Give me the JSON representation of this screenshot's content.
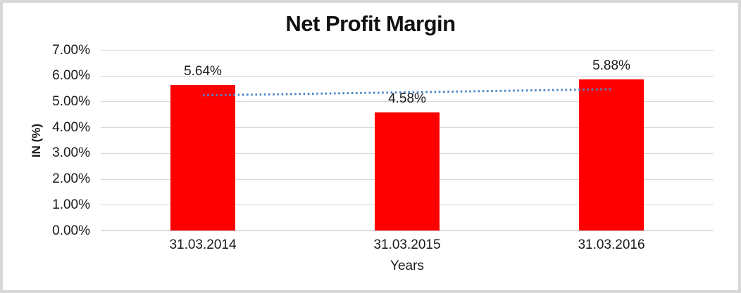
{
  "window": {
    "background_color": "#ffffff",
    "frame_border_color": "#d8d8d8"
  },
  "chart_data": {
    "type": "bar",
    "title": "Net Profit Margin",
    "xlabel": "Years",
    "ylabel": "IN (%)",
    "categories": [
      "31.03.2014",
      "31.03.2015",
      "31.03.2016"
    ],
    "values": [
      5.64,
      4.58,
      5.88
    ],
    "value_labels": [
      "5.64%",
      "4.58%",
      "5.88%"
    ],
    "ylim": [
      0,
      7
    ],
    "ytick_step": 1,
    "ytick_labels": [
      "0.00%",
      "1.00%",
      "2.00%",
      "3.00%",
      "4.00%",
      "5.00%",
      "6.00%",
      "7.00%"
    ],
    "grid": true,
    "legend": "none",
    "bar_color": "#ff0000",
    "gridline_color": "#d9d9d9",
    "axis_line_color": "#bfbfbf",
    "trendline": {
      "type": "linear",
      "style": "dotted",
      "color": "#4f87c8",
      "start_value": 5.25,
      "end_value": 5.49
    }
  }
}
